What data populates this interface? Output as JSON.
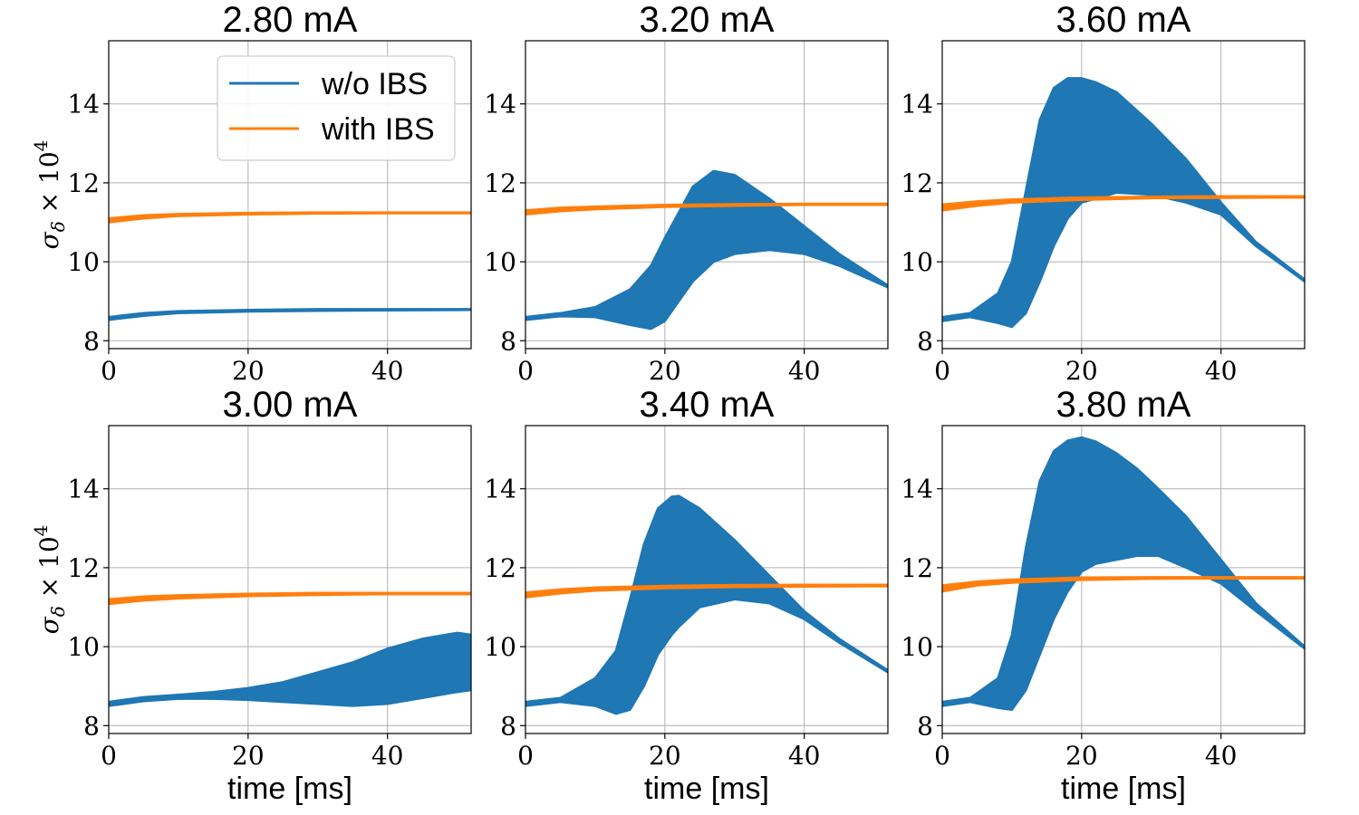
{
  "colors": {
    "without_ibs": "#1f77b4",
    "with_ibs": "#ff7f0e",
    "grid": "#b0b0b0"
  },
  "legend": {
    "placement": "upper-right of first panel",
    "entries": [
      "w/o IBS",
      "with IBS"
    ]
  },
  "ylabel": {
    "sigma": "σ",
    "sub": "δ",
    "rest": " × 10",
    "sup": "4"
  },
  "chart_data": [
    {
      "type": "line",
      "title": "2.80 mA",
      "xlabel": "",
      "xlim": [
        0,
        52
      ],
      "ylim": [
        7.8,
        15.6
      ],
      "xticks": [
        0,
        20,
        40
      ],
      "yticks": [
        8,
        10,
        12,
        14
      ],
      "grid": true,
      "series": [
        {
          "name": "w/o IBS",
          "x": [
            0,
            5,
            10,
            20,
            30,
            40,
            52
          ],
          "upper": [
            8.6,
            8.7,
            8.75,
            8.78,
            8.8,
            8.8,
            8.8
          ],
          "lower": [
            8.53,
            8.63,
            8.7,
            8.74,
            8.76,
            8.77,
            8.78
          ]
        },
        {
          "name": "with IBS",
          "x": [
            0,
            5,
            10,
            20,
            30,
            40,
            52
          ],
          "upper": [
            11.1,
            11.18,
            11.21,
            11.24,
            11.25,
            11.25,
            11.25
          ],
          "lower": [
            11.0,
            11.1,
            11.16,
            11.2,
            11.22,
            11.23,
            11.23
          ]
        }
      ]
    },
    {
      "type": "line",
      "title": "3.20 mA",
      "xlabel": "",
      "xlim": [
        0,
        52
      ],
      "ylim": [
        7.8,
        15.6
      ],
      "xticks": [
        0,
        20,
        40
      ],
      "yticks": [
        8,
        10,
        12,
        14
      ],
      "grid": true,
      "series": [
        {
          "name": "w/o IBS",
          "x": [
            0,
            5,
            10,
            15,
            18,
            20,
            24,
            27,
            30,
            35,
            40,
            45,
            52
          ],
          "upper": [
            8.6,
            8.7,
            8.85,
            9.3,
            9.9,
            10.6,
            11.9,
            12.3,
            12.2,
            11.6,
            10.9,
            10.2,
            9.4
          ],
          "lower": [
            8.53,
            8.62,
            8.6,
            8.4,
            8.3,
            8.5,
            9.5,
            10.0,
            10.2,
            10.3,
            10.2,
            9.9,
            9.35
          ]
        },
        {
          "name": "with IBS",
          "x": [
            0,
            5,
            10,
            20,
            30,
            40,
            52
          ],
          "upper": [
            11.3,
            11.37,
            11.4,
            11.44,
            11.46,
            11.47,
            11.47
          ],
          "lower": [
            11.2,
            11.28,
            11.33,
            11.39,
            11.42,
            11.44,
            11.44
          ]
        }
      ]
    },
    {
      "type": "line",
      "title": "3.60 mA",
      "xlabel": "",
      "xlim": [
        0,
        52
      ],
      "ylim": [
        7.8,
        15.6
      ],
      "xticks": [
        0,
        20,
        40
      ],
      "yticks": [
        8,
        10,
        12,
        14
      ],
      "grid": true,
      "series": [
        {
          "name": "w/o IBS",
          "x": [
            0,
            4,
            8,
            10,
            12,
            14,
            16,
            18,
            20,
            22,
            25,
            30,
            35,
            40,
            45,
            52
          ],
          "upper": [
            8.6,
            8.7,
            9.2,
            10.0,
            11.8,
            13.6,
            14.4,
            14.65,
            14.65,
            14.55,
            14.3,
            13.5,
            12.6,
            11.5,
            10.5,
            9.55
          ],
          "lower": [
            8.5,
            8.6,
            8.45,
            8.35,
            8.7,
            9.5,
            10.4,
            11.1,
            11.5,
            11.6,
            11.75,
            11.7,
            11.5,
            11.2,
            10.4,
            9.5
          ]
        },
        {
          "name": "with IBS",
          "x": [
            0,
            5,
            10,
            20,
            30,
            40,
            52
          ],
          "upper": [
            11.45,
            11.53,
            11.58,
            11.63,
            11.65,
            11.66,
            11.66
          ],
          "lower": [
            11.3,
            11.42,
            11.5,
            11.57,
            11.61,
            11.62,
            11.63
          ]
        }
      ]
    },
    {
      "type": "line",
      "title": "3.00 mA",
      "xlabel": "time [ms]",
      "xlim": [
        0,
        52
      ],
      "ylim": [
        7.8,
        15.6
      ],
      "xticks": [
        0,
        20,
        40
      ],
      "yticks": [
        8,
        10,
        12,
        14
      ],
      "grid": true,
      "series": [
        {
          "name": "w/o IBS",
          "x": [
            0,
            5,
            10,
            15,
            20,
            25,
            30,
            35,
            40,
            45,
            50,
            52
          ],
          "upper": [
            8.6,
            8.72,
            8.78,
            8.85,
            8.95,
            9.1,
            9.35,
            9.6,
            9.95,
            10.2,
            10.35,
            10.3
          ],
          "lower": [
            8.5,
            8.62,
            8.68,
            8.68,
            8.65,
            8.6,
            8.55,
            8.5,
            8.55,
            8.7,
            8.85,
            8.9
          ]
        },
        {
          "name": "with IBS",
          "x": [
            0,
            5,
            10,
            20,
            30,
            40,
            52
          ],
          "upper": [
            11.2,
            11.27,
            11.3,
            11.34,
            11.36,
            11.36,
            11.36
          ],
          "lower": [
            11.08,
            11.17,
            11.22,
            11.28,
            11.31,
            11.33,
            11.33
          ]
        }
      ]
    },
    {
      "type": "line",
      "title": "3.40 mA",
      "xlabel": "time [ms]",
      "xlim": [
        0,
        52
      ],
      "ylim": [
        7.8,
        15.6
      ],
      "xticks": [
        0,
        20,
        40
      ],
      "yticks": [
        8,
        10,
        12,
        14
      ],
      "grid": true,
      "series": [
        {
          "name": "w/o IBS",
          "x": [
            0,
            5,
            10,
            13,
            15,
            17,
            19,
            21,
            22,
            25,
            30,
            35,
            40,
            45,
            52
          ],
          "upper": [
            8.6,
            8.7,
            9.2,
            9.9,
            11.2,
            12.6,
            13.5,
            13.8,
            13.82,
            13.5,
            12.7,
            11.8,
            10.9,
            10.2,
            9.4
          ],
          "lower": [
            8.5,
            8.6,
            8.5,
            8.3,
            8.4,
            9.0,
            9.8,
            10.3,
            10.5,
            11.0,
            11.2,
            11.1,
            10.7,
            10.1,
            9.35
          ]
        },
        {
          "name": "with IBS",
          "x": [
            0,
            5,
            10,
            20,
            30,
            40,
            52
          ],
          "upper": [
            11.37,
            11.45,
            11.5,
            11.54,
            11.56,
            11.57,
            11.57
          ],
          "lower": [
            11.25,
            11.35,
            11.42,
            11.48,
            11.51,
            11.52,
            11.53
          ]
        }
      ]
    },
    {
      "type": "line",
      "title": "3.80 mA",
      "xlabel": "time [ms]",
      "xlim": [
        0,
        52
      ],
      "ylim": [
        7.8,
        15.6
      ],
      "xticks": [
        0,
        20,
        40
      ],
      "yticks": [
        8,
        10,
        12,
        14
      ],
      "grid": true,
      "series": [
        {
          "name": "w/o IBS",
          "x": [
            0,
            4,
            8,
            10,
            12,
            14,
            16,
            18,
            20,
            22,
            25,
            28,
            31,
            35,
            40,
            45,
            52
          ],
          "upper": [
            8.6,
            8.7,
            9.2,
            10.3,
            12.5,
            14.2,
            14.95,
            15.22,
            15.3,
            15.2,
            14.9,
            14.5,
            14.0,
            13.3,
            12.2,
            11.1,
            10.0
          ],
          "lower": [
            8.5,
            8.6,
            8.45,
            8.4,
            8.9,
            9.8,
            10.7,
            11.4,
            11.9,
            12.1,
            12.2,
            12.3,
            12.3,
            12.0,
            11.6,
            10.9,
            9.95
          ]
        },
        {
          "name": "with IBS",
          "x": [
            0,
            5,
            10,
            20,
            30,
            40,
            52
          ],
          "upper": [
            11.55,
            11.65,
            11.7,
            11.75,
            11.76,
            11.76,
            11.76
          ],
          "lower": [
            11.4,
            11.55,
            11.62,
            11.69,
            11.72,
            11.73,
            11.73
          ]
        }
      ]
    }
  ]
}
